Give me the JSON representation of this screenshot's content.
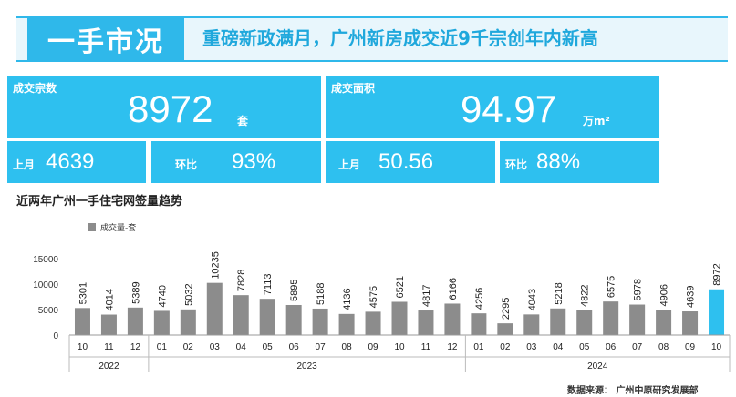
{
  "header": {
    "section": "一手市况",
    "headline": "重磅新政满月，广州新房成交近9千宗创年内新高"
  },
  "stats": {
    "deals": {
      "label": "成交宗数",
      "value": "8972",
      "unit": "套",
      "prev_label": "上月",
      "prev_value": "4639",
      "mom_label": "环比",
      "mom_value": "93%"
    },
    "area": {
      "label": "成交面积",
      "value": "94.97",
      "unit": "万m²",
      "prev_label": "上月",
      "prev_value": "50.56",
      "mom_label": "环比",
      "mom_value": "88%"
    }
  },
  "chart_title": "近两年广州一手住宅网签量趋势",
  "source": {
    "label": "数据来源：",
    "org": "广州中原研究发展部"
  },
  "colors": {
    "accent": "#2fb8ea",
    "bar": "#8c8c8c",
    "highlight": "#2ec0ef"
  },
  "chart_data": {
    "type": "bar",
    "categories": [
      "10",
      "11",
      "12",
      "01",
      "02",
      "03",
      "04",
      "05",
      "06",
      "07",
      "08",
      "09",
      "10",
      "11",
      "12",
      "01",
      "02",
      "03",
      "04",
      "05",
      "06",
      "07",
      "08",
      "09",
      "10"
    ],
    "year_groups": [
      {
        "label": "2022",
        "count": 3
      },
      {
        "label": "2023",
        "count": 12
      },
      {
        "label": "2024",
        "count": 10
      }
    ],
    "series": [
      {
        "name": "成交量-套",
        "values": [
          5301,
          4014,
          5389,
          4740,
          5032,
          10235,
          7828,
          7113,
          5895,
          5188,
          4136,
          4575,
          6521,
          4817,
          6166,
          4256,
          2295,
          4043,
          5218,
          4822,
          6575,
          5978,
          4906,
          4639,
          8972
        ]
      }
    ],
    "highlight_index": 24,
    "ylim": [
      0,
      15000
    ],
    "yticks": [
      0,
      5000,
      10000,
      15000
    ],
    "legend": "top-left",
    "grid": false
  }
}
